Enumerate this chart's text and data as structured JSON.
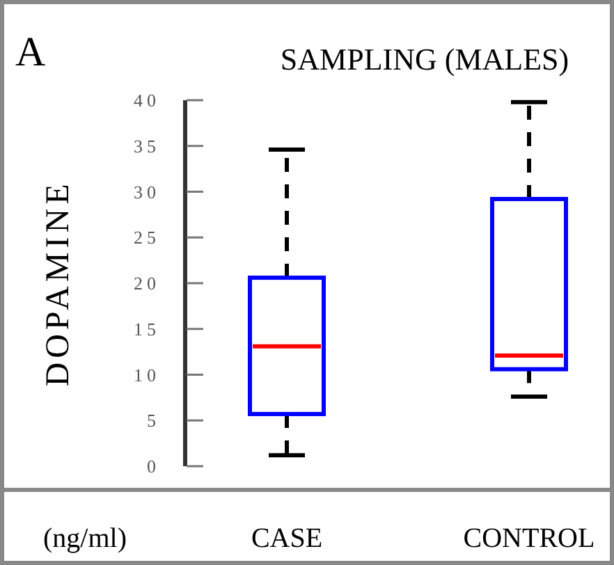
{
  "chart_data": {
    "type": "box",
    "title": "SAMPLING (MALES)",
    "ylabel": "DOPAMINE",
    "annotations": [
      "A",
      "(ng/ml)"
    ],
    "categories": [
      "CASE",
      "CONTROL"
    ],
    "boxes": [
      {
        "low": 1.2,
        "q1": 5.7,
        "median": 13.1,
        "q3": 20.6,
        "high": 34.6
      },
      {
        "low": 7.6,
        "q1": 10.6,
        "median": 12.1,
        "q3": 29.2,
        "high": 39.8
      }
    ],
    "color": "#0000ff",
    "ylim": [
      0,
      40
    ],
    "yticks": [
      0,
      5,
      10,
      15,
      20,
      25,
      30,
      35,
      40
    ]
  }
}
